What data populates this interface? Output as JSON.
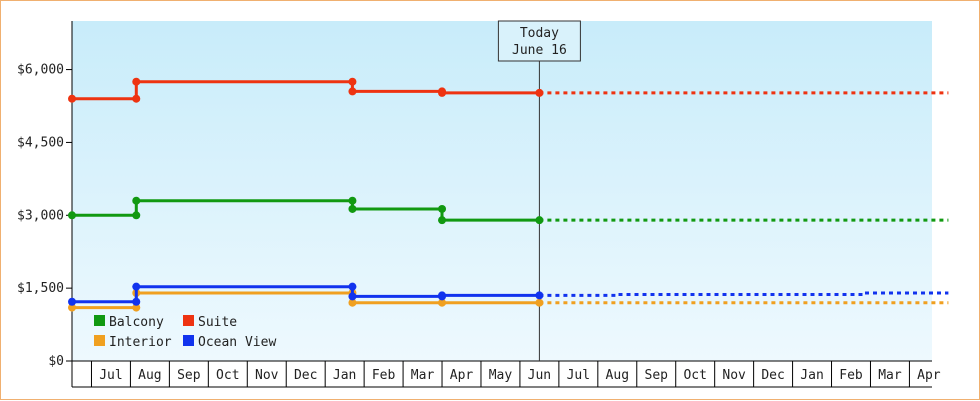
{
  "chart_data": {
    "type": "line",
    "step": true,
    "ylim": [
      0,
      7000
    ],
    "y_ticks": [
      0,
      1500,
      3000,
      4500,
      6000
    ],
    "y_tick_labels": [
      "$0",
      "$1,500",
      "$3,000",
      "$4,500",
      "$6,000"
    ],
    "x_months": [
      "Jul",
      "Aug",
      "Sep",
      "Oct",
      "Nov",
      "Dec",
      "Jan",
      "Feb",
      "Mar",
      "Apr",
      "May",
      "Jun",
      "Jul",
      "Aug",
      "Sep",
      "Oct",
      "Nov",
      "Dec",
      "Jan",
      "Feb",
      "Mar",
      "Apr"
    ],
    "today": {
      "line1": "Today",
      "line2": "June 16",
      "x": 12.0
    },
    "grid": false,
    "legend_placement": "bottom-left",
    "series": [
      {
        "name": "Balcony",
        "color": "#119911",
        "points": [
          [
            0.0,
            3000
          ],
          [
            1.65,
            3000
          ],
          [
            1.65,
            3300
          ],
          [
            7.2,
            3300
          ],
          [
            7.2,
            3130
          ],
          [
            9.5,
            3130
          ],
          [
            9.5,
            2900
          ],
          [
            12.0,
            2900
          ]
        ],
        "projection": [
          [
            12.0,
            2900
          ],
          [
            22.5,
            2900
          ]
        ]
      },
      {
        "name": "Suite",
        "color": "#ee3311",
        "points": [
          [
            0.0,
            5400
          ],
          [
            1.65,
            5400
          ],
          [
            1.65,
            5750
          ],
          [
            7.2,
            5750
          ],
          [
            7.2,
            5550
          ],
          [
            9.5,
            5550
          ],
          [
            9.5,
            5520
          ],
          [
            12.0,
            5520
          ]
        ],
        "projection": [
          [
            12.0,
            5520
          ],
          [
            22.5,
            5520
          ]
        ]
      },
      {
        "name": "Interior",
        "color": "#f0a020",
        "points": [
          [
            0.0,
            1100
          ],
          [
            1.65,
            1100
          ],
          [
            1.65,
            1400
          ],
          [
            7.2,
            1400
          ],
          [
            7.2,
            1200
          ],
          [
            9.5,
            1200
          ],
          [
            12.0,
            1200
          ]
        ],
        "projection": [
          [
            12.0,
            1200
          ],
          [
            22.5,
            1200
          ]
        ]
      },
      {
        "name": "Ocean View",
        "color": "#1133ee",
        "points": [
          [
            0.0,
            1220
          ],
          [
            1.65,
            1220
          ],
          [
            1.65,
            1530
          ],
          [
            7.2,
            1530
          ],
          [
            7.2,
            1330
          ],
          [
            9.5,
            1330
          ],
          [
            9.5,
            1350
          ],
          [
            12.0,
            1350
          ]
        ],
        "projection": [
          [
            12.0,
            1350
          ],
          [
            14.0,
            1350
          ],
          [
            14.0,
            1370
          ],
          [
            20.3,
            1370
          ],
          [
            20.3,
            1400
          ],
          [
            22.5,
            1400
          ]
        ]
      }
    ]
  }
}
